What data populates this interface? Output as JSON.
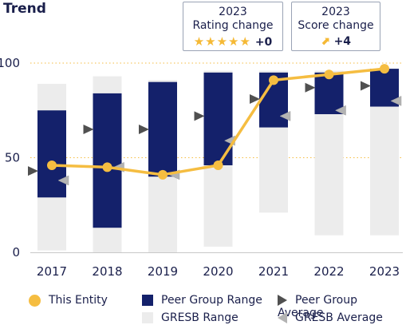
{
  "header": {
    "title": "Trend"
  },
  "rating_box": {
    "year": "2023",
    "label": "Rating change",
    "stars": "★★★★★",
    "value": "+0"
  },
  "score_box": {
    "year": "2023",
    "label": "Score change",
    "arrow": "⬈",
    "value": "+4"
  },
  "colors": {
    "entity": "#f5bd41",
    "peer_range": "#14216b",
    "gresb_range": "#ececec",
    "peer_avg": "#505050",
    "gresb_avg": "#b3b3b3",
    "grid": "#f5bd41",
    "axis_text": "#1a1f4b"
  },
  "chart_data": {
    "type": "bar",
    "title": "Trend",
    "categories": [
      "2017",
      "2018",
      "2019",
      "2020",
      "2021",
      "2022",
      "2023"
    ],
    "ylim": [
      0,
      100
    ],
    "yticks": [
      0,
      50,
      100
    ],
    "grid": "dotted horizontal at 50 and 100",
    "series": [
      {
        "name": "This Entity",
        "kind": "line",
        "values": [
          46,
          45,
          41,
          46,
          91,
          94,
          97
        ]
      },
      {
        "name": "Peer Group Range",
        "kind": "range",
        "low": [
          29,
          13,
          40,
          46,
          66,
          73,
          77
        ],
        "high": [
          75,
          84,
          90,
          95,
          95,
          95,
          97
        ]
      },
      {
        "name": "GRESB Range",
        "kind": "range",
        "low": [
          1,
          0,
          0,
          3,
          21,
          9,
          9
        ],
        "high": [
          89,
          93,
          91,
          96,
          96,
          96,
          97
        ]
      },
      {
        "name": "Peer Group Average",
        "kind": "marker",
        "values": [
          43,
          65,
          65,
          72,
          81,
          87,
          88
        ]
      },
      {
        "name": "GRESB Average",
        "kind": "marker",
        "values": [
          38,
          45,
          41,
          59,
          72,
          75,
          80
        ]
      }
    ]
  },
  "legend": {
    "entity": "This Entity",
    "peer_range": "Peer Group Range",
    "gresb_range": "GRESB Range",
    "peer_avg": "Peer Group Average",
    "gresb_avg": "GRESB Average"
  }
}
